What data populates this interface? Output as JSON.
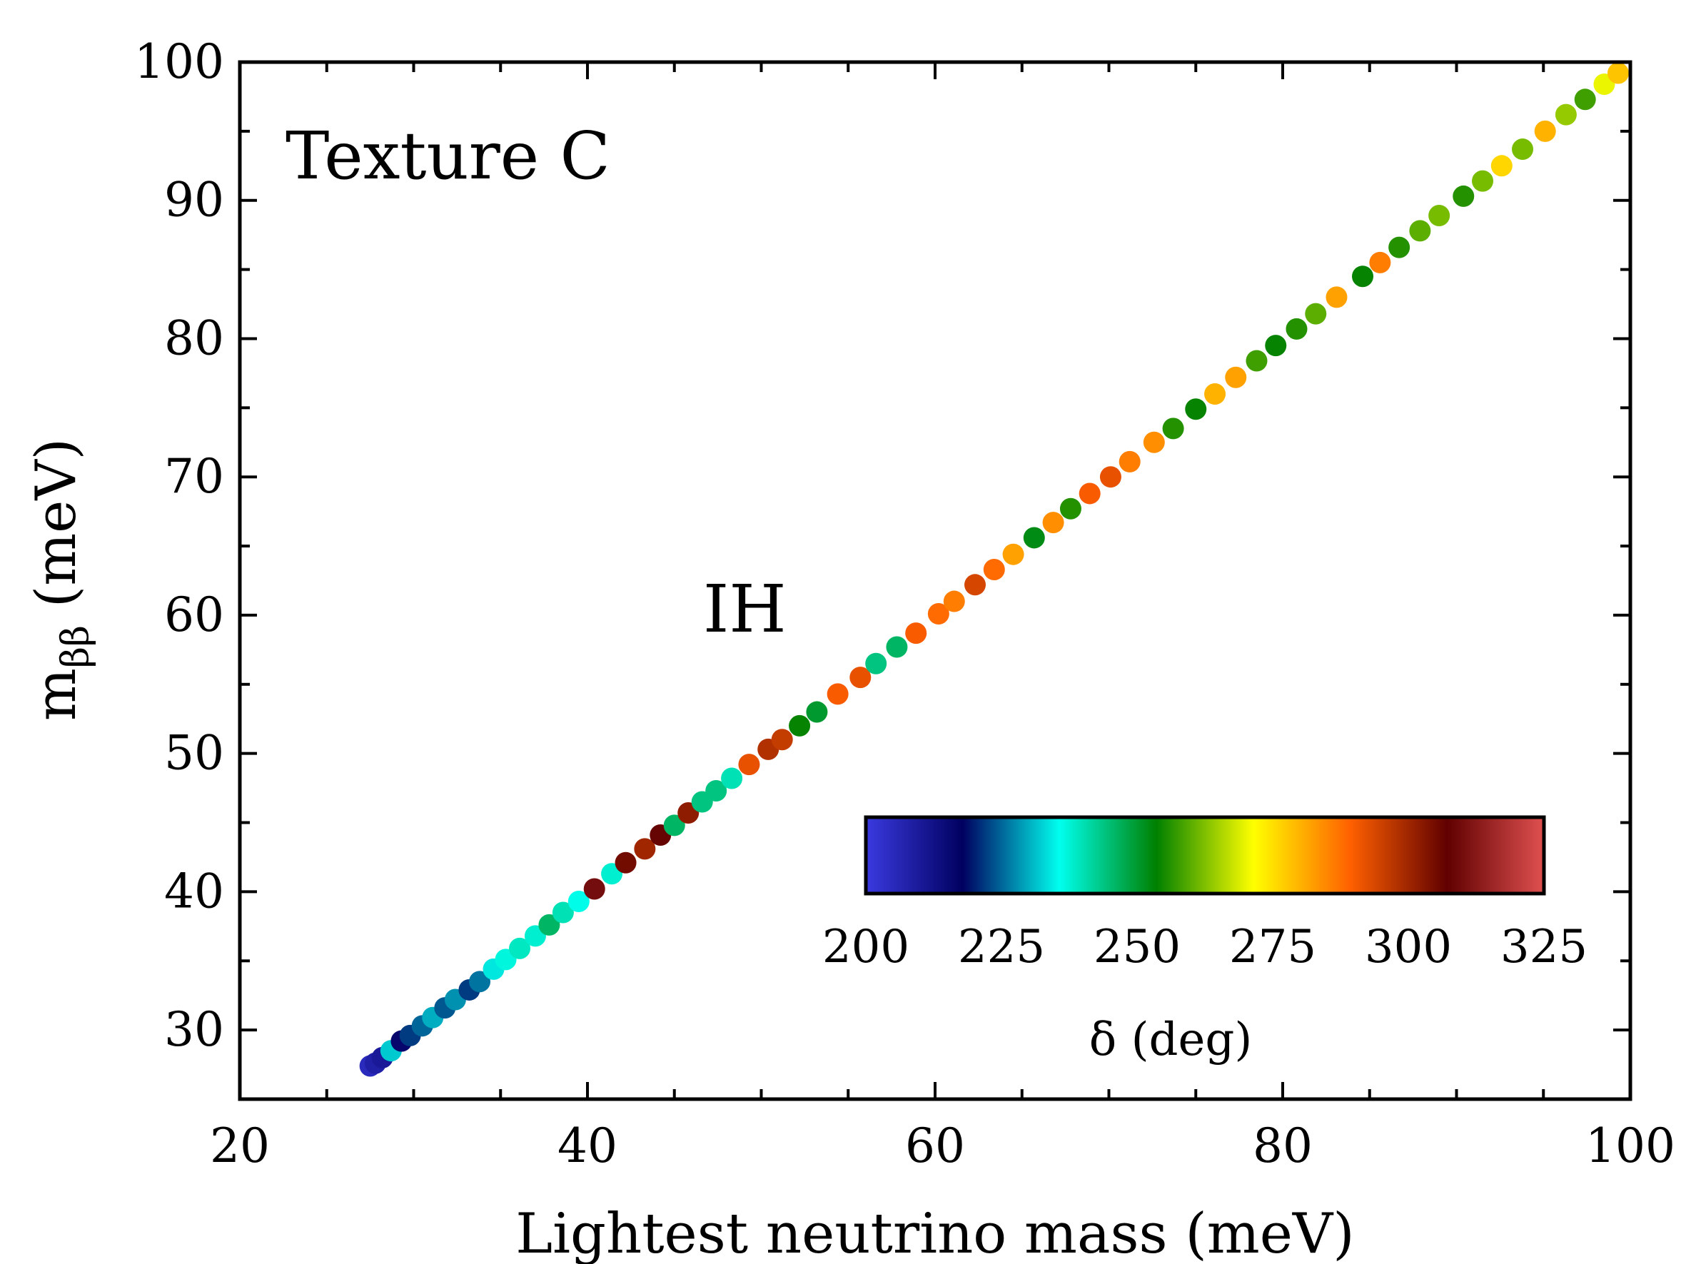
{
  "chart_data": {
    "type": "scatter",
    "xlabel": "Lightest neutrino mass (meV)",
    "ylabel_main": "m",
    "ylabel_sub": "ββ",
    "ylabel_unit": "(meV)",
    "xlim": [
      20,
      100
    ],
    "ylim": [
      25,
      100
    ],
    "x_ticks": [
      20,
      40,
      60,
      80,
      100
    ],
    "y_ticks": [
      30,
      40,
      50,
      60,
      70,
      80,
      90,
      100
    ],
    "grid": false,
    "annotations": {
      "texture": "Texture C",
      "hierarchy": "IH"
    },
    "colorbar": {
      "label": "δ (deg)",
      "range": [
        200,
        325
      ],
      "ticks": [
        200,
        225,
        250,
        275,
        300,
        325
      ],
      "colormap": [
        "#3a3ae0",
        "#000060",
        "#00ffee",
        "#008000",
        "#ffff00",
        "#ff6000",
        "#600000",
        "#e05050"
      ]
    },
    "points": [
      {
        "x": 27.5,
        "y": 27.4,
        "delta": 205
      },
      {
        "x": 27.8,
        "y": 27.6,
        "delta": 208
      },
      {
        "x": 28.2,
        "y": 28.0,
        "delta": 210
      },
      {
        "x": 28.7,
        "y": 28.5,
        "delta": 232
      },
      {
        "x": 29.3,
        "y": 29.2,
        "delta": 216
      },
      {
        "x": 29.8,
        "y": 29.6,
        "delta": 222
      },
      {
        "x": 30.5,
        "y": 30.3,
        "delta": 225
      },
      {
        "x": 31.1,
        "y": 30.9,
        "delta": 230
      },
      {
        "x": 31.8,
        "y": 31.6,
        "delta": 224
      },
      {
        "x": 32.4,
        "y": 32.2,
        "delta": 228
      },
      {
        "x": 33.2,
        "y": 32.9,
        "delta": 222
      },
      {
        "x": 33.8,
        "y": 33.5,
        "delta": 226
      },
      {
        "x": 34.6,
        "y": 34.4,
        "delta": 234
      },
      {
        "x": 35.3,
        "y": 35.1,
        "delta": 237
      },
      {
        "x": 36.1,
        "y": 35.9,
        "delta": 239
      },
      {
        "x": 37.0,
        "y": 36.8,
        "delta": 238
      },
      {
        "x": 37.8,
        "y": 37.6,
        "delta": 246
      },
      {
        "x": 38.6,
        "y": 38.5,
        "delta": 240
      },
      {
        "x": 39.5,
        "y": 39.3,
        "delta": 236
      },
      {
        "x": 40.4,
        "y": 40.2,
        "delta": 310
      },
      {
        "x": 41.4,
        "y": 41.3,
        "delta": 238
      },
      {
        "x": 42.2,
        "y": 42.1,
        "delta": 305
      },
      {
        "x": 43.3,
        "y": 43.1,
        "delta": 300
      },
      {
        "x": 44.2,
        "y": 44.1,
        "delta": 308
      },
      {
        "x": 45.0,
        "y": 44.8,
        "delta": 246
      },
      {
        "x": 45.8,
        "y": 45.7,
        "delta": 302
      },
      {
        "x": 46.6,
        "y": 46.5,
        "delta": 244
      },
      {
        "x": 47.4,
        "y": 47.3,
        "delta": 244
      },
      {
        "x": 48.3,
        "y": 48.2,
        "delta": 240
      },
      {
        "x": 49.3,
        "y": 49.2,
        "delta": 292
      },
      {
        "x": 50.4,
        "y": 50.3,
        "delta": 298
      },
      {
        "x": 51.2,
        "y": 51.0,
        "delta": 296
      },
      {
        "x": 52.2,
        "y": 52.0,
        "delta": 254
      },
      {
        "x": 53.2,
        "y": 53.0,
        "delta": 250
      },
      {
        "x": 54.4,
        "y": 54.3,
        "delta": 290
      },
      {
        "x": 55.7,
        "y": 55.5,
        "delta": 292
      },
      {
        "x": 56.6,
        "y": 56.5,
        "delta": 244
      },
      {
        "x": 57.8,
        "y": 57.7,
        "delta": 246
      },
      {
        "x": 58.9,
        "y": 58.7,
        "delta": 290
      },
      {
        "x": 60.2,
        "y": 60.1,
        "delta": 288
      },
      {
        "x": 61.1,
        "y": 61.0,
        "delta": 286
      },
      {
        "x": 62.3,
        "y": 62.2,
        "delta": 294
      },
      {
        "x": 63.4,
        "y": 63.3,
        "delta": 288
      },
      {
        "x": 64.5,
        "y": 64.4,
        "delta": 282
      },
      {
        "x": 65.7,
        "y": 65.6,
        "delta": 252
      },
      {
        "x": 66.8,
        "y": 66.7,
        "delta": 284
      },
      {
        "x": 67.8,
        "y": 67.7,
        "delta": 256
      },
      {
        "x": 68.9,
        "y": 68.8,
        "delta": 290
      },
      {
        "x": 70.1,
        "y": 70.0,
        "delta": 292
      },
      {
        "x": 71.2,
        "y": 71.1,
        "delta": 286
      },
      {
        "x": 72.6,
        "y": 72.5,
        "delta": 284
      },
      {
        "x": 73.7,
        "y": 73.5,
        "delta": 256
      },
      {
        "x": 75.0,
        "y": 74.9,
        "delta": 254
      },
      {
        "x": 76.1,
        "y": 76.0,
        "delta": 280
      },
      {
        "x": 77.3,
        "y": 77.2,
        "delta": 282
      },
      {
        "x": 78.5,
        "y": 78.4,
        "delta": 258
      },
      {
        "x": 79.6,
        "y": 79.5,
        "delta": 254
      },
      {
        "x": 80.8,
        "y": 80.7,
        "delta": 256
      },
      {
        "x": 81.9,
        "y": 81.8,
        "delta": 260
      },
      {
        "x": 83.1,
        "y": 83.0,
        "delta": 282
      },
      {
        "x": 84.6,
        "y": 84.5,
        "delta": 254
      },
      {
        "x": 85.6,
        "y": 85.5,
        "delta": 286
      },
      {
        "x": 86.7,
        "y": 86.6,
        "delta": 256
      },
      {
        "x": 87.9,
        "y": 87.8,
        "delta": 260
      },
      {
        "x": 89.0,
        "y": 88.9,
        "delta": 262
      },
      {
        "x": 90.4,
        "y": 90.3,
        "delta": 256
      },
      {
        "x": 91.5,
        "y": 91.4,
        "delta": 262
      },
      {
        "x": 92.6,
        "y": 92.5,
        "delta": 276
      },
      {
        "x": 93.8,
        "y": 93.7,
        "delta": 262
      },
      {
        "x": 95.1,
        "y": 95.0,
        "delta": 280
      },
      {
        "x": 96.3,
        "y": 96.2,
        "delta": 264
      },
      {
        "x": 97.4,
        "y": 97.3,
        "delta": 258
      },
      {
        "x": 98.5,
        "y": 98.4,
        "delta": 270
      },
      {
        "x": 99.3,
        "y": 99.2,
        "delta": 278
      }
    ]
  }
}
